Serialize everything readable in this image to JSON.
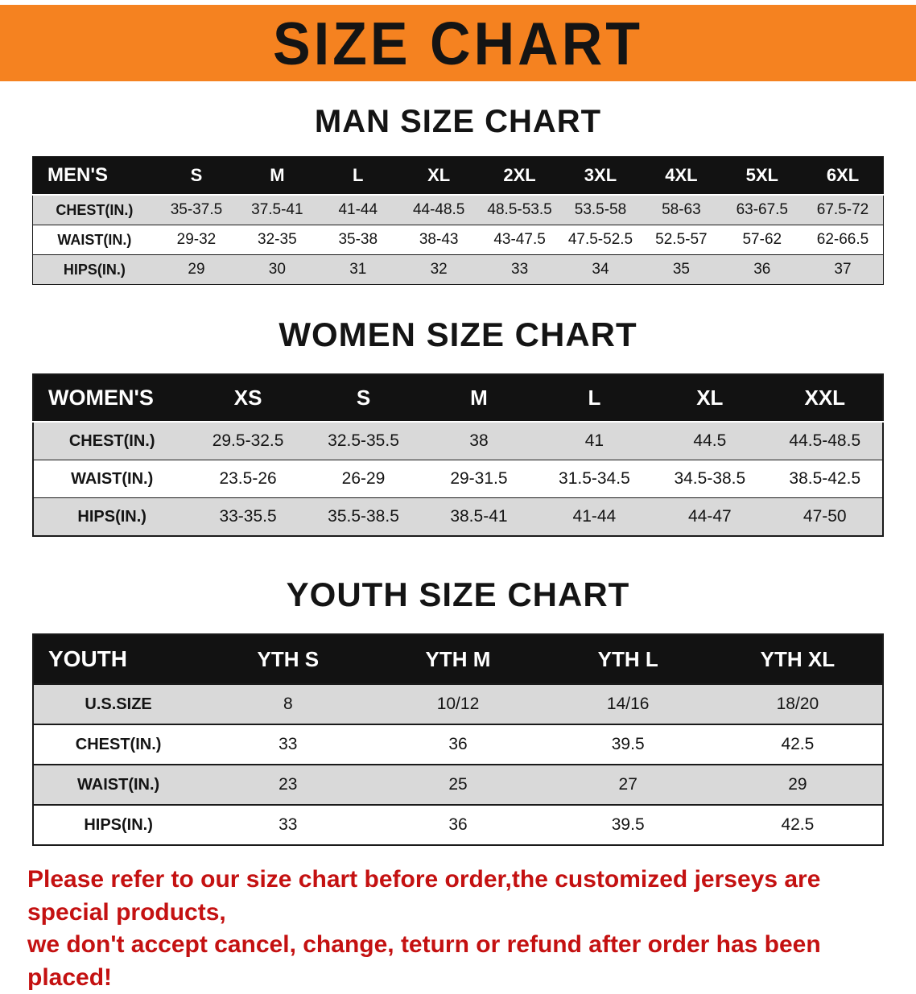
{
  "banner": {
    "title": "SIZE CHART"
  },
  "colors": {
    "banner_bg": "#F58220",
    "table_header_bg": "#121212",
    "table_header_text": "#ffffff",
    "row_alt_bg": "#d9d9d9",
    "disclaimer_text": "#c41111"
  },
  "sections": [
    {
      "heading": "MAN SIZE CHART",
      "table": {
        "header": [
          "MEN'S",
          "S",
          "M",
          "L",
          "XL",
          "2XL",
          "3XL",
          "4XL",
          "5XL",
          "6XL"
        ],
        "rows": [
          [
            "CHEST(IN.)",
            "35-37.5",
            "37.5-41",
            "41-44",
            "44-48.5",
            "48.5-53.5",
            "53.5-58",
            "58-63",
            "63-67.5",
            "67.5-72"
          ],
          [
            "WAIST(IN.)",
            "29-32",
            "32-35",
            "35-38",
            "38-43",
            "43-47.5",
            "47.5-52.5",
            "52.5-57",
            "57-62",
            "62-66.5"
          ],
          [
            "HIPS(IN.)",
            "29",
            "30",
            "31",
            "32",
            "33",
            "34",
            "35",
            "36",
            "37"
          ]
        ]
      }
    },
    {
      "heading": "WOMEN SIZE CHART",
      "table": {
        "header": [
          "WOMEN'S",
          "XS",
          "S",
          "M",
          "L",
          "XL",
          "XXL"
        ],
        "rows": [
          [
            "CHEST(IN.)",
            "29.5-32.5",
            "32.5-35.5",
            "38",
            "41",
            "44.5",
            "44.5-48.5"
          ],
          [
            "WAIST(IN.)",
            "23.5-26",
            "26-29",
            "29-31.5",
            "31.5-34.5",
            "34.5-38.5",
            "38.5-42.5"
          ],
          [
            "HIPS(IN.)",
            "33-35.5",
            "35.5-38.5",
            "38.5-41",
            "41-44",
            "44-47",
            "47-50"
          ]
        ]
      }
    },
    {
      "heading": "YOUTH SIZE CHART",
      "table": {
        "header": [
          "YOUTH",
          "YTH S",
          "YTH M",
          "YTH L",
          "YTH XL"
        ],
        "rows": [
          [
            "U.S.SIZE",
            "8",
            "10/12",
            "14/16",
            "18/20"
          ],
          [
            "CHEST(IN.)",
            "33",
            "36",
            "39.5",
            "42.5"
          ],
          [
            "WAIST(IN.)",
            "23",
            "25",
            "27",
            "29"
          ],
          [
            "HIPS(IN.)",
            "33",
            "36",
            "39.5",
            "42.5"
          ]
        ]
      }
    }
  ],
  "disclaimer": {
    "lines": [
      "Please refer to our size chart before order,the customized jerseys are special products,",
      "we don't accept cancel, change, teturn or refund after order has been placed!"
    ]
  }
}
